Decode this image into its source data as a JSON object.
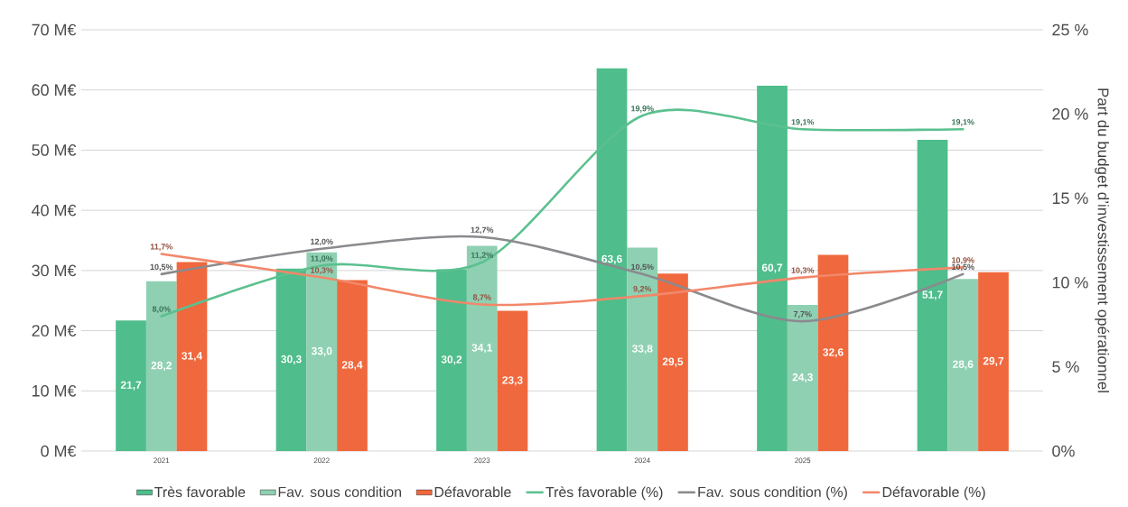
{
  "chart_data": {
    "type": "bar",
    "categories": [
      "2021",
      "2022",
      "2023",
      "2024",
      "2025",
      null
    ],
    "series": [
      {
        "name": "Très favorable",
        "color": "#4fbd8c",
        "values": [
          21.7,
          30.3,
          30.2,
          63.6,
          60.7,
          51.7
        ],
        "value_labels": [
          "21,7",
          "30,3",
          "30,2",
          "63,6",
          "60,7",
          "51,7"
        ]
      },
      {
        "name": "Fav. sous condition",
        "color": "#8fd0b2",
        "values": [
          28.2,
          33.0,
          34.1,
          33.8,
          24.3,
          28.6
        ],
        "value_labels": [
          "28,2",
          "33,0",
          "34,1",
          "33,8",
          "24,3",
          "28,6"
        ]
      },
      {
        "name": "Défavorable",
        "color": "#f0683d",
        "values": [
          31.4,
          28.4,
          23.3,
          29.5,
          32.6,
          29.7
        ],
        "value_labels": [
          "31,4",
          "28,4",
          "23,3",
          "29,5",
          "32,6",
          "29,7"
        ]
      },
      {
        "name": "Très favorable (%)",
        "type": "line",
        "axis": "y2",
        "color": "#5cc08f",
        "values": [
          8.0,
          11.0,
          11.2,
          19.9,
          19.1,
          19.1
        ],
        "value_labels": [
          "8,0%",
          "11,0%",
          "11,2%",
          "19,9%",
          "19,1%",
          "19,1%"
        ]
      },
      {
        "name": "Fav. sous condition (%)",
        "type": "line",
        "axis": "y2",
        "color": "#8a8a8e",
        "values": [
          10.5,
          12.0,
          12.7,
          10.5,
          7.7,
          10.5
        ],
        "value_labels": [
          "10,5%",
          "12,0%",
          "12,7%",
          "10,5%",
          "7,7%",
          "10,5%"
        ]
      },
      {
        "name": "Défavorable (%)",
        "type": "line",
        "axis": "y2",
        "color": "#f2876a",
        "values": [
          11.7,
          10.3,
          8.7,
          9.2,
          10.3,
          10.9
        ],
        "value_labels": [
          "11,7%",
          "10,3%",
          "8,7%",
          "9,2%",
          "10,3%",
          "10,9%"
        ]
      }
    ],
    "ylim": [
      0,
      70
    ],
    "yticks": [
      {
        "value": 0,
        "label": "0 M€"
      },
      {
        "value": 10,
        "label": "10 M€"
      },
      {
        "value": 20,
        "label": "20 M€"
      },
      {
        "value": 30,
        "label": "30 M€"
      },
      {
        "value": 40,
        "label": "40 M€"
      },
      {
        "value": 50,
        "label": "50 M€"
      },
      {
        "value": 60,
        "label": "60 M€"
      },
      {
        "value": 70,
        "label": "70 M€"
      }
    ],
    "y2lim": [
      0,
      25
    ],
    "y2ticks": [
      {
        "value": 0,
        "label": "0%"
      },
      {
        "value": 5,
        "label": "5 %"
      },
      {
        "value": 10,
        "label": "10 %"
      },
      {
        "value": 15,
        "label": "15 %"
      },
      {
        "value": 20,
        "label": "20 %"
      },
      {
        "value": 25,
        "label": "25 %"
      }
    ],
    "y2label": "Part du budget d’investissement opérationnel",
    "grid": "y",
    "legend": "bottom"
  }
}
